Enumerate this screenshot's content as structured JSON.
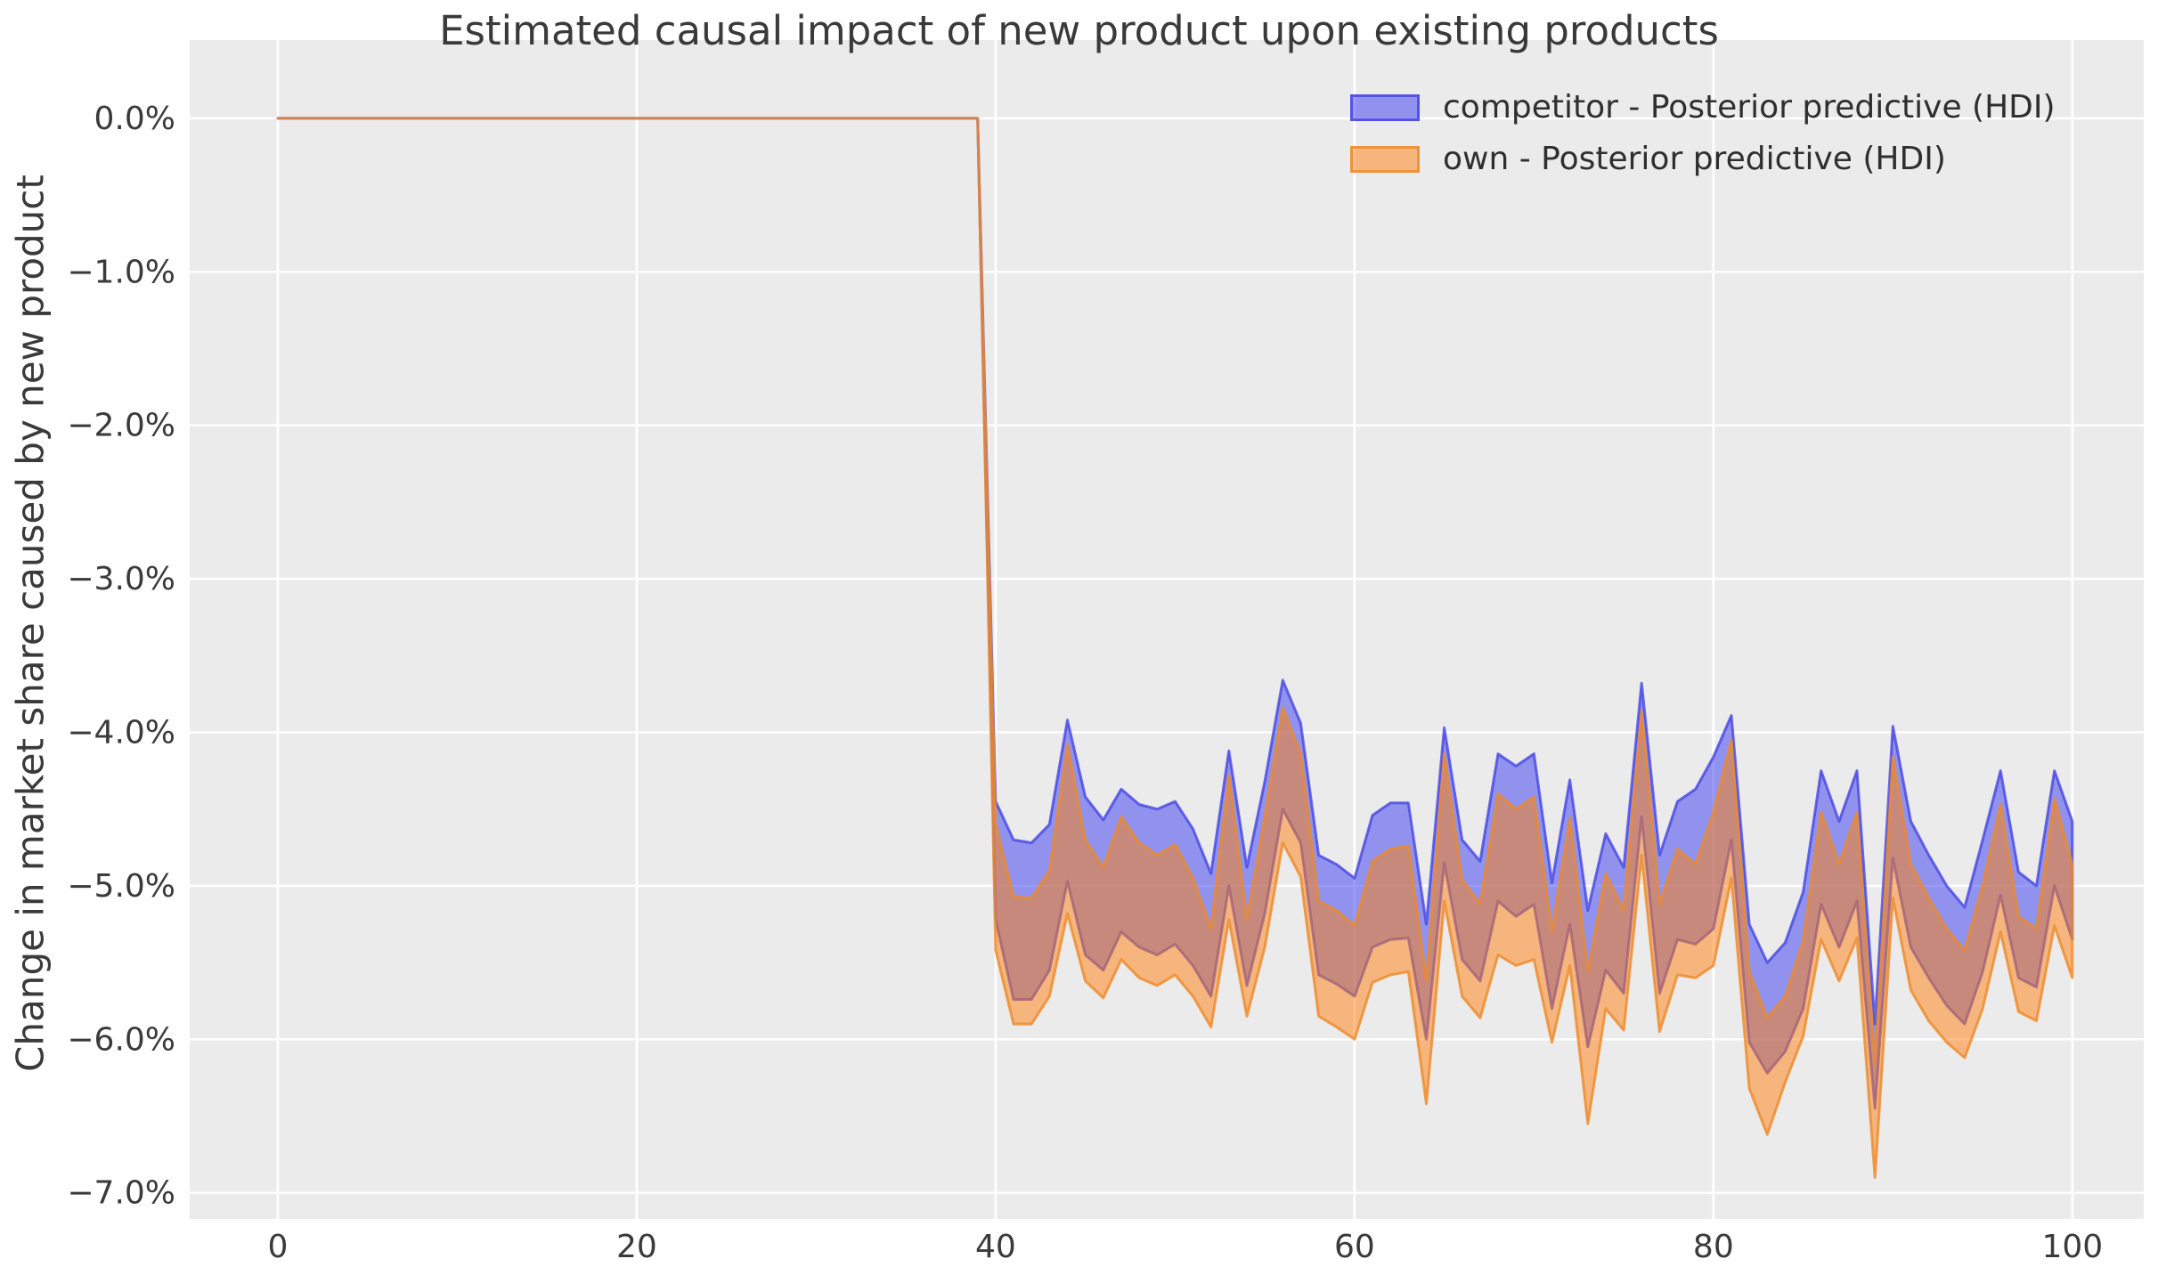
{
  "figure": {
    "background": "#ffffff",
    "plot_background": "#ebebeb",
    "grid_color": "#ffffff",
    "text_color": "#3a3a3a"
  },
  "chart_data": {
    "type": "area",
    "title": "Estimated causal impact of new product upon existing products",
    "xlabel": "",
    "ylabel": "Change in market share caused by new product",
    "units": "percent",
    "grid": true,
    "legend_position": "upper right",
    "xlim": [
      -4.91,
      103.98
    ],
    "ylim": [
      -7.17,
      0.51
    ],
    "x_ticks": [
      0,
      20,
      40,
      60,
      80,
      100
    ],
    "y_tick_values": [
      0,
      -1,
      -2,
      -3,
      -4,
      -5,
      -6,
      -7
    ],
    "y_tick_labels": [
      "0.0%",
      "−1.0%",
      "−2.0%",
      "−3.0%",
      "−4.0%",
      "−5.0%",
      "−6.0%",
      "−7.0%"
    ],
    "intervention_x": 40,
    "pre_period": {
      "x_start": 0,
      "x_end": 39,
      "upper": 0.0,
      "lower": 0.0
    },
    "post_x": [
      40,
      41,
      42,
      43,
      44,
      45,
      46,
      47,
      48,
      49,
      50,
      51,
      52,
      53,
      54,
      55,
      56,
      57,
      58,
      59,
      60,
      61,
      62,
      63,
      64,
      65,
      66,
      67,
      68,
      69,
      70,
      71,
      72,
      73,
      74,
      75,
      76,
      77,
      78,
      79,
      80,
      81,
      82,
      83,
      84,
      85,
      86,
      87,
      88,
      89,
      90,
      91,
      92,
      93,
      94,
      95,
      96,
      97,
      98,
      99,
      100
    ],
    "series": [
      {
        "name": "competitor - Posterior predictive (HDI)",
        "fill": "rgba(54,58,240,0.5)",
        "edge": "rgba(62,62,225,0.75)",
        "upper": [
          -4.45,
          -4.7,
          -4.72,
          -4.6,
          -3.92,
          -4.42,
          -4.57,
          -4.37,
          -4.47,
          -4.5,
          -4.45,
          -4.63,
          -4.92,
          -4.12,
          -4.88,
          -4.32,
          -3.66,
          -3.94,
          -4.8,
          -4.86,
          -4.95,
          -4.54,
          -4.46,
          -4.46,
          -5.25,
          -3.97,
          -4.7,
          -4.84,
          -4.14,
          -4.22,
          -4.14,
          -4.98,
          -4.31,
          -5.16,
          -4.66,
          -4.88,
          -3.68,
          -4.8,
          -4.45,
          -4.37,
          -4.16,
          -3.89,
          -5.25,
          -5.5,
          -5.37,
          -5.04,
          -4.25,
          -4.58,
          -4.25,
          -5.9,
          -3.96,
          -4.58,
          -4.8,
          -5.0,
          -5.14,
          -4.7,
          -4.25,
          -4.91,
          -5.0,
          -4.25,
          -4.58
        ],
        "lower": [
          -5.22,
          -5.74,
          -5.74,
          -5.55,
          -4.97,
          -5.45,
          -5.55,
          -5.3,
          -5.4,
          -5.45,
          -5.38,
          -5.52,
          -5.72,
          -5.0,
          -5.65,
          -5.18,
          -4.5,
          -4.72,
          -5.58,
          -5.64,
          -5.72,
          -5.4,
          -5.35,
          -5.34,
          -6.0,
          -4.85,
          -5.48,
          -5.62,
          -5.1,
          -5.2,
          -5.12,
          -5.8,
          -5.25,
          -6.05,
          -5.55,
          -5.7,
          -4.55,
          -5.7,
          -5.35,
          -5.38,
          -5.28,
          -4.7,
          -6.02,
          -6.22,
          -6.08,
          -5.8,
          -5.12,
          -5.4,
          -5.1,
          -6.45,
          -4.82,
          -5.4,
          -5.6,
          -5.78,
          -5.9,
          -5.56,
          -5.06,
          -5.6,
          -5.66,
          -5.0,
          -5.35
        ]
      },
      {
        "name": "own - Posterior predictive (HDI)",
        "fill": "rgba(255,127,14,0.5)",
        "edge": "rgba(238,138,40,0.8)",
        "upper": [
          -4.6,
          -5.07,
          -5.08,
          -4.9,
          -4.08,
          -4.7,
          -4.88,
          -4.55,
          -4.72,
          -4.8,
          -4.73,
          -4.95,
          -5.28,
          -4.28,
          -5.22,
          -4.55,
          -3.84,
          -4.14,
          -5.1,
          -5.16,
          -5.26,
          -4.84,
          -4.76,
          -4.74,
          -5.62,
          -4.14,
          -4.96,
          -5.12,
          -4.4,
          -4.5,
          -4.42,
          -5.3,
          -4.56,
          -5.56,
          -4.92,
          -5.16,
          -3.86,
          -5.12,
          -4.76,
          -4.86,
          -4.52,
          -4.05,
          -5.56,
          -5.86,
          -5.72,
          -5.36,
          -4.52,
          -4.86,
          -4.52,
          -6.16,
          -4.16,
          -4.86,
          -5.08,
          -5.28,
          -5.42,
          -5.0,
          -4.47,
          -5.2,
          -5.28,
          -4.43,
          -4.86
        ],
        "lower": [
          -5.42,
          -5.9,
          -5.9,
          -5.72,
          -5.18,
          -5.62,
          -5.73,
          -5.48,
          -5.6,
          -5.65,
          -5.58,
          -5.72,
          -5.92,
          -5.22,
          -5.85,
          -5.4,
          -4.72,
          -4.94,
          -5.85,
          -5.92,
          -6.0,
          -5.63,
          -5.58,
          -5.56,
          -6.42,
          -5.1,
          -5.72,
          -5.86,
          -5.45,
          -5.52,
          -5.48,
          -6.02,
          -5.52,
          -6.55,
          -5.8,
          -5.94,
          -4.8,
          -5.95,
          -5.58,
          -5.6,
          -5.52,
          -4.95,
          -6.32,
          -6.62,
          -6.28,
          -5.98,
          -5.35,
          -5.62,
          -5.34,
          -6.9,
          -5.08,
          -5.68,
          -5.88,
          -6.02,
          -6.12,
          -5.8,
          -5.3,
          -5.82,
          -5.88,
          -5.26,
          -5.6
        ]
      }
    ]
  },
  "legend": {
    "items": [
      {
        "label": "competitor - Posterior predictive (HDI)",
        "swatch": "blue-purple"
      },
      {
        "label": "own - Posterior predictive (HDI)",
        "swatch": "orange"
      }
    ]
  }
}
